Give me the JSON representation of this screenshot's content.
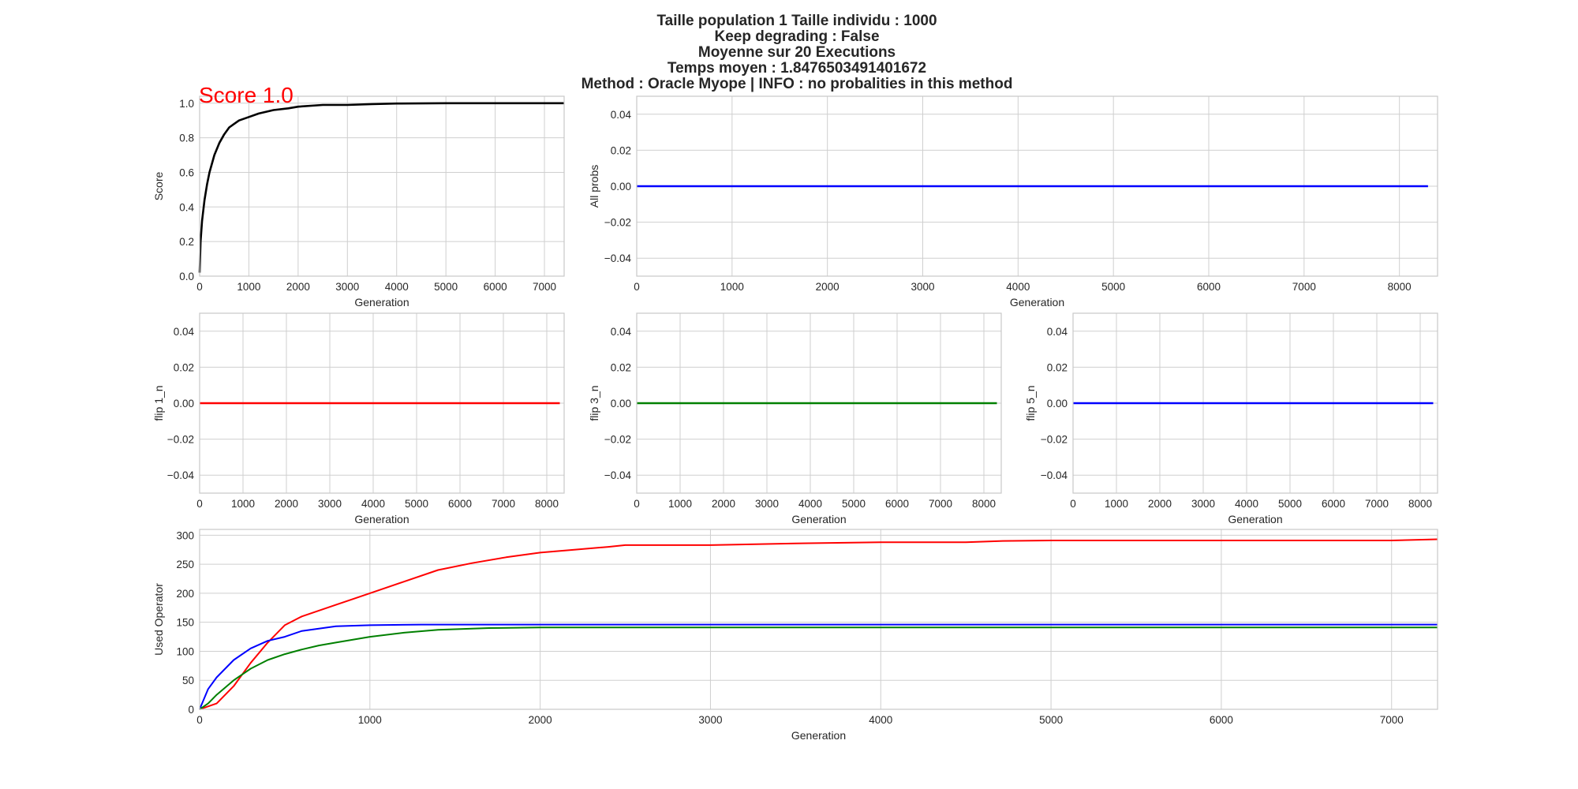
{
  "suptitle_lines": [
    "Taille population  1 Taille individu : 1000",
    "Keep degrading : False",
    "Moyenne sur 20 Executions",
    "Temps moyen : 1.8476503491401672",
    "Method : Oracle Myope | INFO : no probalities in this method"
  ],
  "colors": {
    "score": "#000000",
    "flip1": "#ff0000",
    "flip3": "#008000",
    "flip5": "#0000ff",
    "annotation": "#ff0000"
  },
  "chart_data": [
    {
      "id": "score",
      "type": "line",
      "xlabel": "Generation",
      "ylabel": "Score",
      "xlim": [
        0,
        7400
      ],
      "ylim": [
        0,
        1.04
      ],
      "xticks": [
        0,
        1000,
        2000,
        3000,
        4000,
        5000,
        6000,
        7000
      ],
      "yticks": [
        0.0,
        0.2,
        0.4,
        0.6,
        0.8,
        1.0
      ],
      "annotation": "Score 1.0",
      "series": [
        {
          "color": "#000000",
          "x": [
            0,
            20,
            50,
            100,
            150,
            200,
            300,
            400,
            500,
            600,
            700,
            800,
            1000,
            1200,
            1500,
            1800,
            2000,
            2500,
            3000,
            3500,
            4000,
            5000,
            6000,
            7400
          ],
          "y": [
            0.02,
            0.2,
            0.32,
            0.44,
            0.53,
            0.6,
            0.7,
            0.77,
            0.82,
            0.86,
            0.88,
            0.9,
            0.92,
            0.94,
            0.96,
            0.97,
            0.98,
            0.99,
            0.99,
            0.995,
            0.998,
            1.0,
            1.0,
            1.0
          ]
        }
      ]
    },
    {
      "id": "all-probs",
      "type": "line",
      "xlabel": "Generation",
      "ylabel": "All probs",
      "xlim": [
        0,
        8400
      ],
      "ylim": [
        -0.05,
        0.05
      ],
      "xticks": [
        0,
        1000,
        2000,
        3000,
        4000,
        5000,
        6000,
        7000,
        8000
      ],
      "yticks": [
        -0.04,
        -0.02,
        0.0,
        0.02,
        0.04
      ],
      "series": [
        {
          "color": "#0000ff",
          "x": [
            0,
            8300
          ],
          "y": [
            0,
            0
          ]
        }
      ]
    },
    {
      "id": "flip1",
      "type": "line",
      "xlabel": "Generation",
      "ylabel": "flip 1_n",
      "xlim": [
        0,
        8400
      ],
      "ylim": [
        -0.05,
        0.05
      ],
      "xticks": [
        0,
        1000,
        2000,
        3000,
        4000,
        5000,
        6000,
        7000,
        8000
      ],
      "yticks": [
        -0.04,
        -0.02,
        0.0,
        0.02,
        0.04
      ],
      "series": [
        {
          "color": "#ff0000",
          "x": [
            0,
            8300
          ],
          "y": [
            0,
            0
          ]
        }
      ]
    },
    {
      "id": "flip3",
      "type": "line",
      "xlabel": "Generation",
      "ylabel": "flip 3_n",
      "xlim": [
        0,
        8400
      ],
      "ylim": [
        -0.05,
        0.05
      ],
      "xticks": [
        0,
        1000,
        2000,
        3000,
        4000,
        5000,
        6000,
        7000,
        8000
      ],
      "yticks": [
        -0.04,
        -0.02,
        0.0,
        0.02,
        0.04
      ],
      "series": [
        {
          "color": "#008000",
          "x": [
            0,
            8300
          ],
          "y": [
            0,
            0
          ]
        }
      ]
    },
    {
      "id": "flip5",
      "type": "line",
      "xlabel": "Generation",
      "ylabel": "flip 5_n",
      "xlim": [
        0,
        8400
      ],
      "ylim": [
        -0.05,
        0.05
      ],
      "xticks": [
        0,
        1000,
        2000,
        3000,
        4000,
        5000,
        6000,
        7000,
        8000
      ],
      "yticks": [
        -0.04,
        -0.02,
        0.0,
        0.02,
        0.04
      ],
      "series": [
        {
          "color": "#0000ff",
          "x": [
            0,
            8300
          ],
          "y": [
            0,
            0
          ]
        }
      ]
    },
    {
      "id": "used-operator",
      "type": "line",
      "xlabel": "Generation",
      "ylabel": "Used Operator",
      "xlim": [
        0,
        7270
      ],
      "ylim": [
        0,
        310
      ],
      "xticks": [
        0,
        1000,
        2000,
        3000,
        4000,
        5000,
        6000,
        7000
      ],
      "yticks": [
        0,
        50,
        100,
        150,
        200,
        250,
        300
      ],
      "series": [
        {
          "color": "#ff0000",
          "x": [
            0,
            100,
            200,
            300,
            400,
            500,
            600,
            800,
            1000,
            1200,
            1400,
            1600,
            1800,
            2000,
            2200,
            2400,
            2500,
            3000,
            3500,
            4000,
            4500,
            4700,
            5000,
            6000,
            7000,
            7270
          ],
          "y": [
            0,
            10,
            40,
            80,
            115,
            145,
            160,
            180,
            200,
            220,
            240,
            252,
            262,
            270,
            275,
            280,
            283,
            283,
            286,
            288,
            288,
            290,
            291,
            291,
            291,
            293
          ]
        },
        {
          "color": "#0000ff",
          "x": [
            0,
            50,
            100,
            200,
            300,
            400,
            500,
            600,
            800,
            1000,
            1300,
            2000,
            3000,
            5000,
            7270
          ],
          "y": [
            0,
            35,
            55,
            85,
            105,
            118,
            125,
            135,
            143,
            145,
            146,
            146,
            146,
            146,
            146
          ]
        },
        {
          "color": "#008000",
          "x": [
            0,
            50,
            100,
            200,
            300,
            400,
            500,
            600,
            700,
            800,
            1000,
            1200,
            1400,
            1700,
            2000,
            3000,
            5000,
            7270
          ],
          "y": [
            0,
            10,
            25,
            50,
            70,
            85,
            95,
            103,
            110,
            115,
            125,
            132,
            137,
            140,
            141,
            141,
            141,
            141
          ]
        }
      ]
    }
  ]
}
